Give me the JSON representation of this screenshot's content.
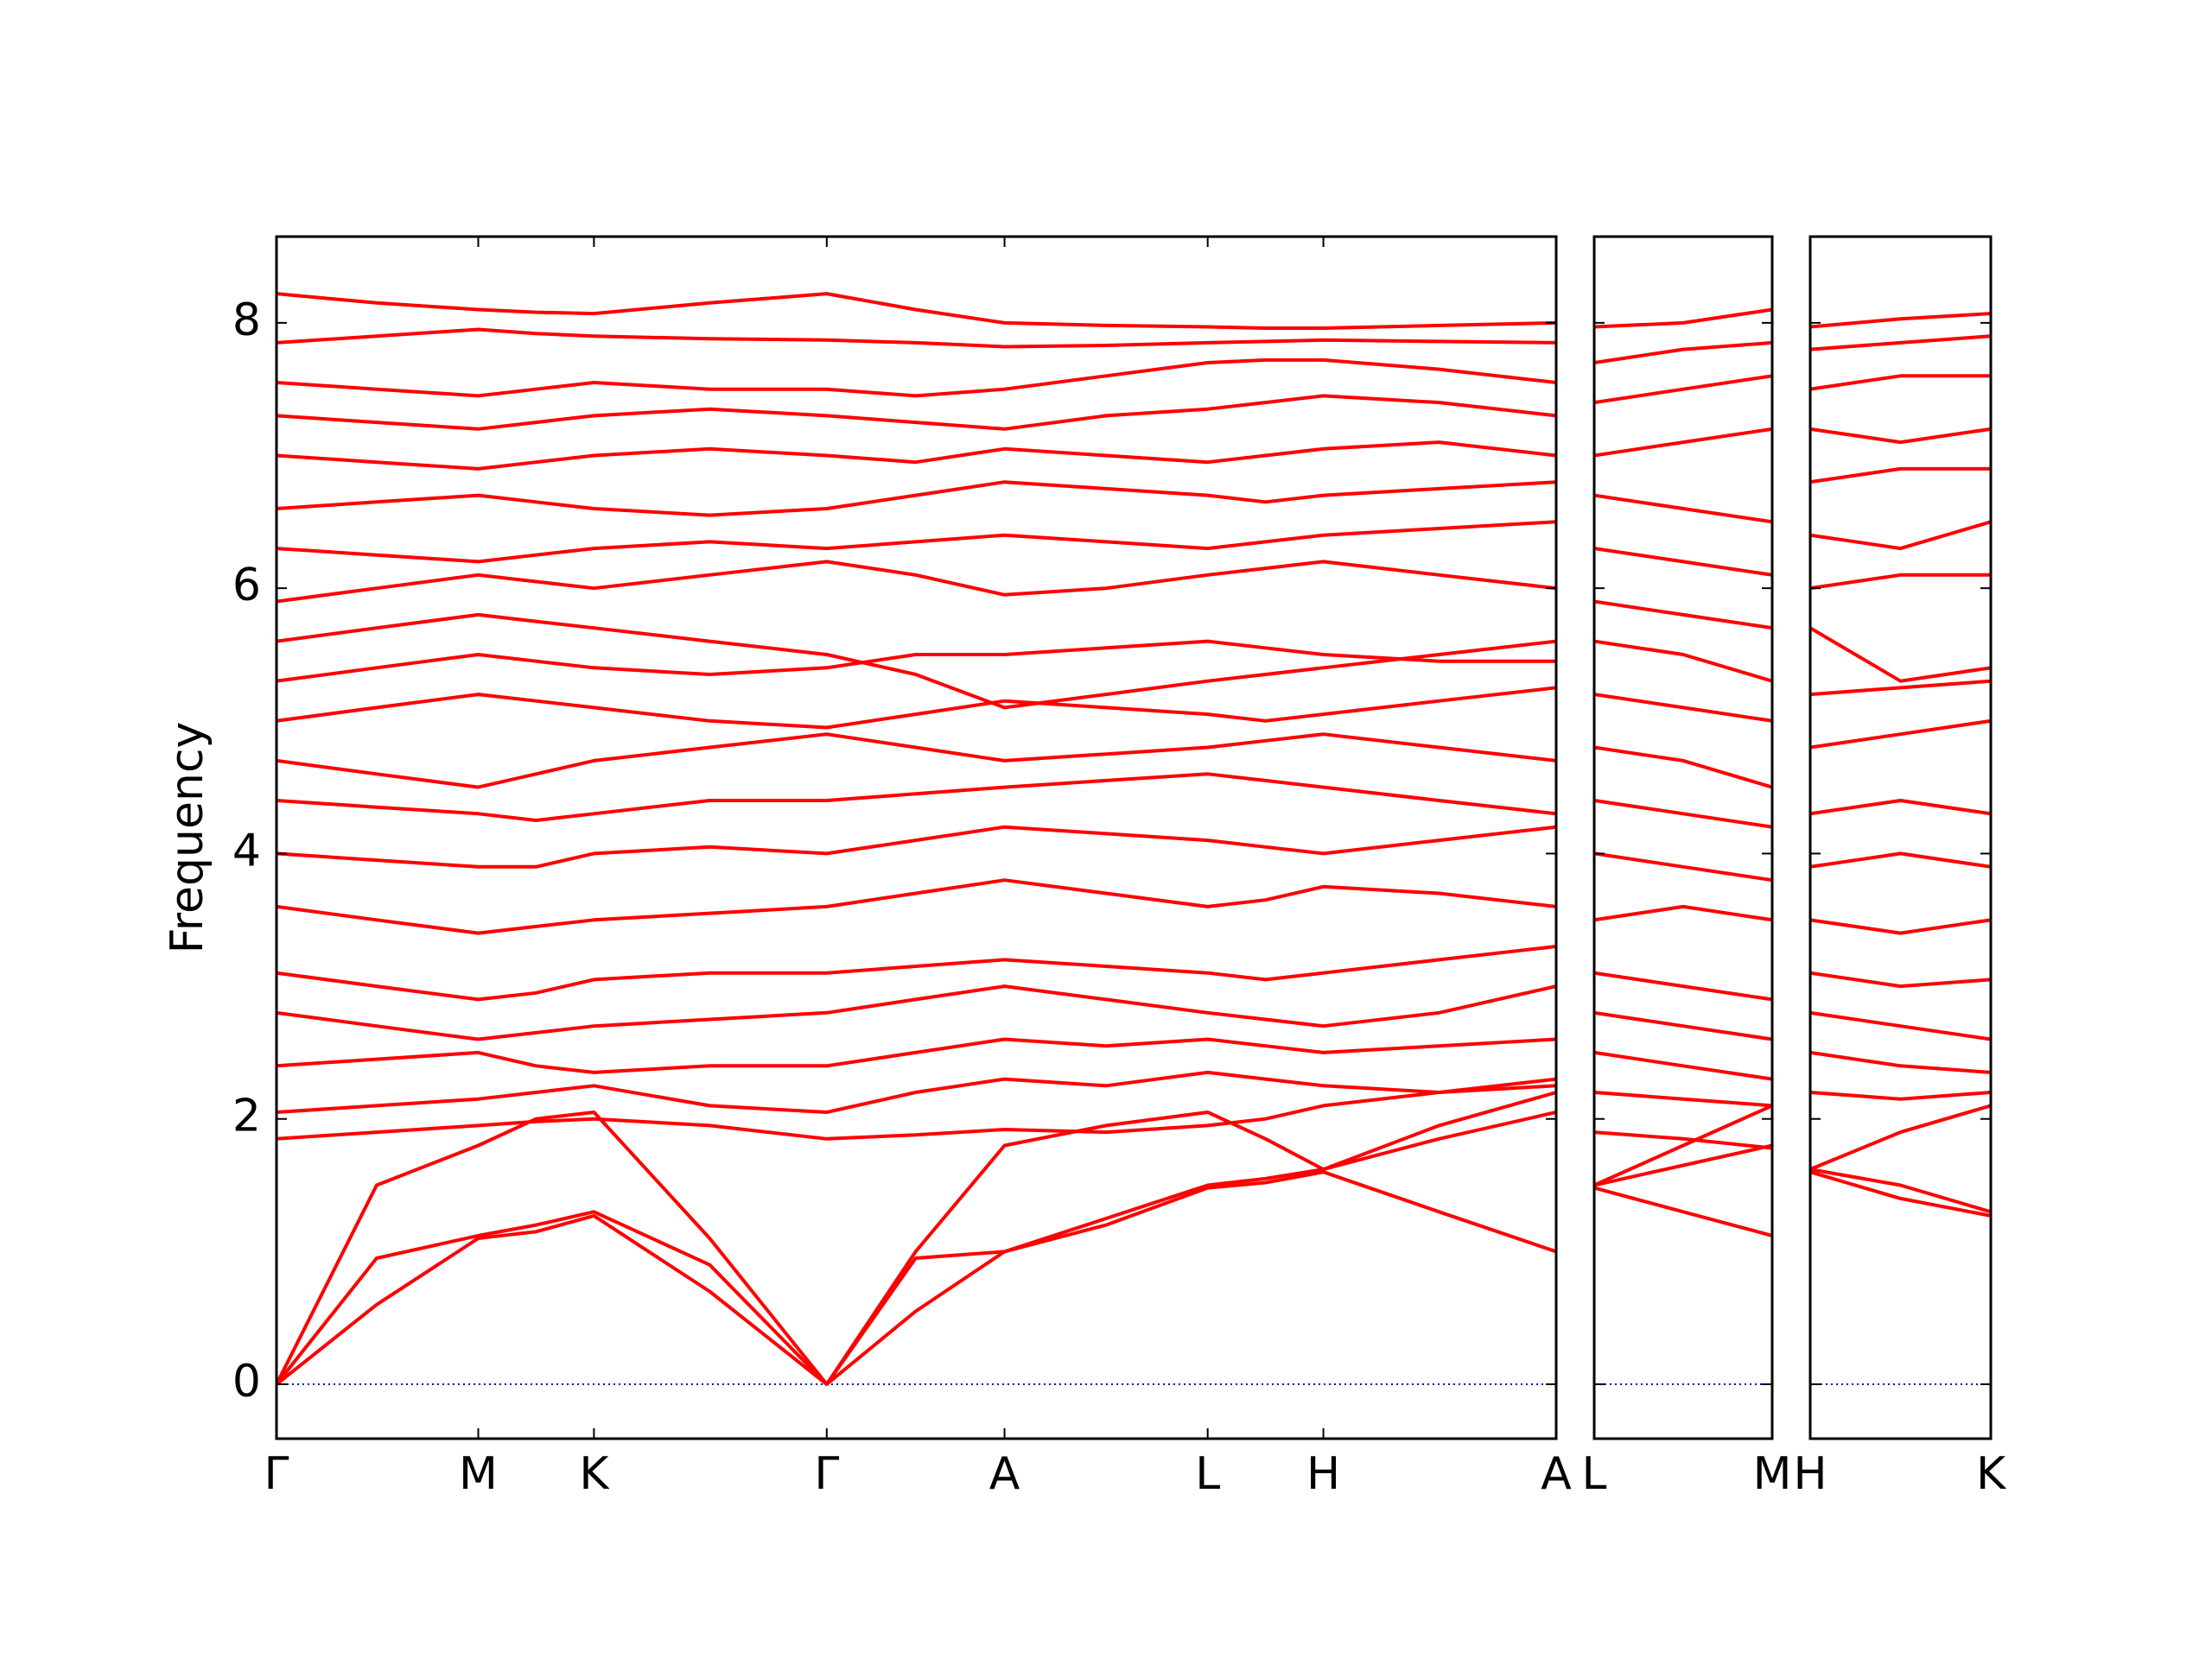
{
  "chart_data": [
    {
      "type": "line",
      "ylabel": "Frequency",
      "x": [
        0,
        0.71,
        1.43,
        1.84,
        2.25,
        3.07,
        3.9,
        4.53,
        5.16,
        5.88,
        6.6,
        7.01,
        7.42,
        8.24,
        9.07
      ],
      "xlim": [
        0,
        9.07
      ],
      "xticks": [
        {
          "value": 0,
          "label": "Γ"
        },
        {
          "value": 1.43,
          "label": "M"
        },
        {
          "value": 2.25,
          "label": "K"
        },
        {
          "value": 3.9,
          "label": "Γ"
        },
        {
          "value": 5.16,
          "label": "A"
        },
        {
          "value": 6.6,
          "label": "L"
        },
        {
          "value": 7.42,
          "label": "H"
        },
        {
          "value": 9.07,
          "label": "A"
        }
      ],
      "ylim": [
        -0.41,
        8.65
      ],
      "yticks": [
        0,
        2,
        4,
        6,
        8
      ],
      "zero_line": {
        "value": 0,
        "color": "#0000cc"
      },
      "series": [
        {
          "color": "#ff0000",
          "values": [
            0,
            0.6,
            1.1,
            1.15,
            1.27,
            0.7,
            0,
            0.55,
            1.0,
            1.2,
            1.48,
            1.52,
            1.6,
            1.3,
            1.0
          ]
        },
        {
          "color": "#ff0000",
          "values": [
            0,
            0.95,
            1.12,
            1.2,
            1.3,
            0.9,
            0,
            0.95,
            1.0,
            1.25,
            1.5,
            1.55,
            1.62,
            1.85,
            2.05
          ]
        },
        {
          "color": "#ff0000",
          "values": [
            0,
            1.5,
            1.8,
            2.0,
            2.05,
            1.1,
            0,
            1.0,
            1.8,
            1.95,
            2.05,
            1.85,
            1.62,
            1.95,
            2.2
          ]
        },
        {
          "color": "#ff0000",
          "values": [
            1.85,
            1.9,
            1.95,
            1.98,
            2.0,
            1.95,
            1.85,
            1.88,
            1.92,
            1.9,
            1.95,
            2.0,
            2.1,
            2.2,
            2.3
          ]
        },
        {
          "color": "#ff0000",
          "values": [
            2.05,
            2.1,
            2.15,
            2.2,
            2.25,
            2.1,
            2.05,
            2.2,
            2.3,
            2.25,
            2.35,
            2.3,
            2.25,
            2.2,
            2.25
          ]
        },
        {
          "color": "#ff0000",
          "values": [
            2.4,
            2.45,
            2.5,
            2.4,
            2.35,
            2.4,
            2.4,
            2.5,
            2.6,
            2.55,
            2.6,
            2.55,
            2.5,
            2.55,
            2.6
          ]
        },
        {
          "color": "#ff0000",
          "values": [
            2.8,
            2.7,
            2.6,
            2.65,
            2.7,
            2.75,
            2.8,
            2.9,
            3.0,
            2.9,
            2.8,
            2.75,
            2.7,
            2.8,
            3.0
          ]
        },
        {
          "color": "#ff0000",
          "values": [
            3.1,
            3.0,
            2.9,
            2.95,
            3.05,
            3.1,
            3.1,
            3.15,
            3.2,
            3.15,
            3.1,
            3.05,
            3.1,
            3.2,
            3.3
          ]
        },
        {
          "color": "#ff0000",
          "values": [
            3.6,
            3.5,
            3.4,
            3.45,
            3.5,
            3.55,
            3.6,
            3.7,
            3.8,
            3.7,
            3.6,
            3.65,
            3.75,
            3.7,
            3.6
          ]
        },
        {
          "color": "#ff0000",
          "values": [
            4.0,
            3.95,
            3.9,
            3.9,
            4.0,
            4.05,
            4.0,
            4.1,
            4.2,
            4.15,
            4.1,
            4.05,
            4.0,
            4.1,
            4.2
          ]
        },
        {
          "color": "#ff0000",
          "values": [
            4.4,
            4.35,
            4.3,
            4.25,
            4.3,
            4.4,
            4.4,
            4.45,
            4.5,
            4.55,
            4.6,
            4.55,
            4.5,
            4.4,
            4.3
          ]
        },
        {
          "color": "#ff0000",
          "values": [
            4.7,
            4.6,
            4.5,
            4.6,
            4.7,
            4.8,
            4.9,
            4.8,
            4.7,
            4.75,
            4.8,
            4.85,
            4.9,
            4.8,
            4.7
          ]
        },
        {
          "color": "#ff0000",
          "values": [
            5.0,
            5.1,
            5.2,
            5.15,
            5.1,
            5.0,
            4.95,
            5.05,
            5.15,
            5.1,
            5.05,
            5.0,
            5.05,
            5.15,
            5.25
          ]
        },
        {
          "color": "#ff0000",
          "values": [
            5.3,
            5.4,
            5.5,
            5.45,
            5.4,
            5.35,
            5.4,
            5.5,
            5.5,
            5.55,
            5.6,
            5.55,
            5.5,
            5.45,
            5.45
          ]
        },
        {
          "color": "#ff0000",
          "values": [
            5.6,
            5.7,
            5.8,
            5.75,
            5.7,
            5.6,
            5.5,
            5.35,
            5.1,
            5.2,
            5.3,
            5.35,
            5.4,
            5.5,
            5.6
          ]
        },
        {
          "color": "#ff0000",
          "values": [
            5.9,
            6.0,
            6.1,
            6.05,
            6.0,
            6.1,
            6.2,
            6.1,
            5.95,
            6.0,
            6.1,
            6.15,
            6.2,
            6.1,
            6.0
          ]
        },
        {
          "color": "#ff0000",
          "values": [
            6.3,
            6.25,
            6.2,
            6.25,
            6.3,
            6.35,
            6.3,
            6.35,
            6.4,
            6.35,
            6.3,
            6.35,
            6.4,
            6.45,
            6.5
          ]
        },
        {
          "color": "#ff0000",
          "values": [
            6.6,
            6.65,
            6.7,
            6.65,
            6.6,
            6.55,
            6.6,
            6.7,
            6.8,
            6.75,
            6.7,
            6.65,
            6.7,
            6.75,
            6.8
          ]
        },
        {
          "color": "#ff0000",
          "values": [
            7.0,
            6.95,
            6.9,
            6.95,
            7.0,
            7.05,
            7.0,
            6.95,
            7.05,
            7.0,
            6.95,
            7.0,
            7.05,
            7.1,
            7.0
          ]
        },
        {
          "color": "#ff0000",
          "values": [
            7.3,
            7.25,
            7.2,
            7.25,
            7.3,
            7.35,
            7.3,
            7.25,
            7.2,
            7.3,
            7.35,
            7.4,
            7.45,
            7.4,
            7.3
          ]
        },
        {
          "color": "#ff0000",
          "values": [
            7.55,
            7.5,
            7.45,
            7.5,
            7.55,
            7.5,
            7.5,
            7.45,
            7.5,
            7.6,
            7.7,
            7.72,
            7.72,
            7.65,
            7.55
          ]
        },
        {
          "color": "#ff0000",
          "values": [
            7.85,
            7.9,
            7.95,
            7.92,
            7.9,
            7.88,
            7.87,
            7.85,
            7.82,
            7.83,
            7.85,
            7.86,
            7.87,
            7.86,
            7.85
          ]
        },
        {
          "color": "#ff0000",
          "values": [
            8.22,
            8.15,
            8.1,
            8.08,
            8.07,
            8.15,
            8.22,
            8.1,
            8.0,
            7.98,
            7.97,
            7.96,
            7.96,
            7.98,
            8.0
          ]
        }
      ]
    },
    {
      "type": "line",
      "x": [
        0,
        0.63,
        1.26
      ],
      "xlim": [
        0,
        1.26
      ],
      "xticks": [
        {
          "value": 0,
          "label": "L"
        },
        {
          "value": 1.26,
          "label": "M"
        }
      ],
      "ylim": [
        -0.41,
        8.65
      ],
      "zero_line": {
        "value": 0,
        "color": "#0000cc"
      },
      "series": [
        {
          "color": "#ff0000",
          "values": [
            1.48,
            1.3,
            1.12
          ]
        },
        {
          "color": "#ff0000",
          "values": [
            1.5,
            1.65,
            1.8
          ]
        },
        {
          "color": "#ff0000",
          "values": [
            1.5,
            1.8,
            2.1
          ]
        },
        {
          "color": "#ff0000",
          "values": [
            1.9,
            1.85,
            1.78
          ]
        },
        {
          "color": "#ff0000",
          "values": [
            2.2,
            2.15,
            2.1
          ]
        },
        {
          "color": "#ff0000",
          "values": [
            2.5,
            2.4,
            2.3
          ]
        },
        {
          "color": "#ff0000",
          "values": [
            2.8,
            2.7,
            2.6
          ]
        },
        {
          "color": "#ff0000",
          "values": [
            3.1,
            3.0,
            2.9
          ]
        },
        {
          "color": "#ff0000",
          "values": [
            3.5,
            3.6,
            3.5
          ]
        },
        {
          "color": "#ff0000",
          "values": [
            4.0,
            3.9,
            3.8
          ]
        },
        {
          "color": "#ff0000",
          "values": [
            4.4,
            4.3,
            4.2
          ]
        },
        {
          "color": "#ff0000",
          "values": [
            4.8,
            4.7,
            4.5
          ]
        },
        {
          "color": "#ff0000",
          "values": [
            5.2,
            5.1,
            5.0
          ]
        },
        {
          "color": "#ff0000",
          "values": [
            5.6,
            5.5,
            5.3
          ]
        },
        {
          "color": "#ff0000",
          "values": [
            5.9,
            5.8,
            5.7
          ]
        },
        {
          "color": "#ff0000",
          "values": [
            6.3,
            6.2,
            6.1
          ]
        },
        {
          "color": "#ff0000",
          "values": [
            6.7,
            6.6,
            6.5
          ]
        },
        {
          "color": "#ff0000",
          "values": [
            7.0,
            7.1,
            7.2
          ]
        },
        {
          "color": "#ff0000",
          "values": [
            7.4,
            7.5,
            7.6
          ]
        },
        {
          "color": "#ff0000",
          "values": [
            7.7,
            7.8,
            7.85
          ]
        },
        {
          "color": "#ff0000",
          "values": [
            7.97,
            8.0,
            8.1
          ]
        }
      ]
    },
    {
      "type": "line",
      "x": [
        0,
        0.64,
        1.28
      ],
      "xlim": [
        0,
        1.28
      ],
      "xticks": [
        {
          "value": 0,
          "label": "H"
        },
        {
          "value": 1.28,
          "label": "K"
        }
      ],
      "ylim": [
        -0.41,
        8.65
      ],
      "zero_line": {
        "value": 0,
        "color": "#0000cc"
      },
      "series": [
        {
          "color": "#ff0000",
          "values": [
            1.6,
            1.4,
            1.27
          ]
        },
        {
          "color": "#ff0000",
          "values": [
            1.62,
            1.5,
            1.3
          ]
        },
        {
          "color": "#ff0000",
          "values": [
            1.62,
            1.9,
            2.1
          ]
        },
        {
          "color": "#ff0000",
          "values": [
            2.2,
            2.15,
            2.2
          ]
        },
        {
          "color": "#ff0000",
          "values": [
            2.5,
            2.4,
            2.35
          ]
        },
        {
          "color": "#ff0000",
          "values": [
            2.8,
            2.7,
            2.6
          ]
        },
        {
          "color": "#ff0000",
          "values": [
            3.1,
            3.0,
            3.05
          ]
        },
        {
          "color": "#ff0000",
          "values": [
            3.5,
            3.4,
            3.5
          ]
        },
        {
          "color": "#ff0000",
          "values": [
            3.9,
            4.0,
            3.9
          ]
        },
        {
          "color": "#ff0000",
          "values": [
            4.3,
            4.4,
            4.3
          ]
        },
        {
          "color": "#ff0000",
          "values": [
            4.8,
            4.9,
            5.0
          ]
        },
        {
          "color": "#ff0000",
          "values": [
            5.2,
            5.25,
            5.3
          ]
        },
        {
          "color": "#ff0000",
          "values": [
            5.7,
            5.3,
            5.4
          ]
        },
        {
          "color": "#ff0000",
          "values": [
            6.0,
            6.1,
            6.1
          ]
        },
        {
          "color": "#ff0000",
          "values": [
            6.4,
            6.3,
            6.5
          ]
        },
        {
          "color": "#ff0000",
          "values": [
            6.8,
            6.9,
            6.9
          ]
        },
        {
          "color": "#ff0000",
          "values": [
            7.2,
            7.1,
            7.2
          ]
        },
        {
          "color": "#ff0000",
          "values": [
            7.5,
            7.6,
            7.6
          ]
        },
        {
          "color": "#ff0000",
          "values": [
            7.8,
            7.85,
            7.9
          ]
        },
        {
          "color": "#ff0000",
          "values": [
            7.97,
            8.03,
            8.07
          ]
        }
      ]
    }
  ]
}
